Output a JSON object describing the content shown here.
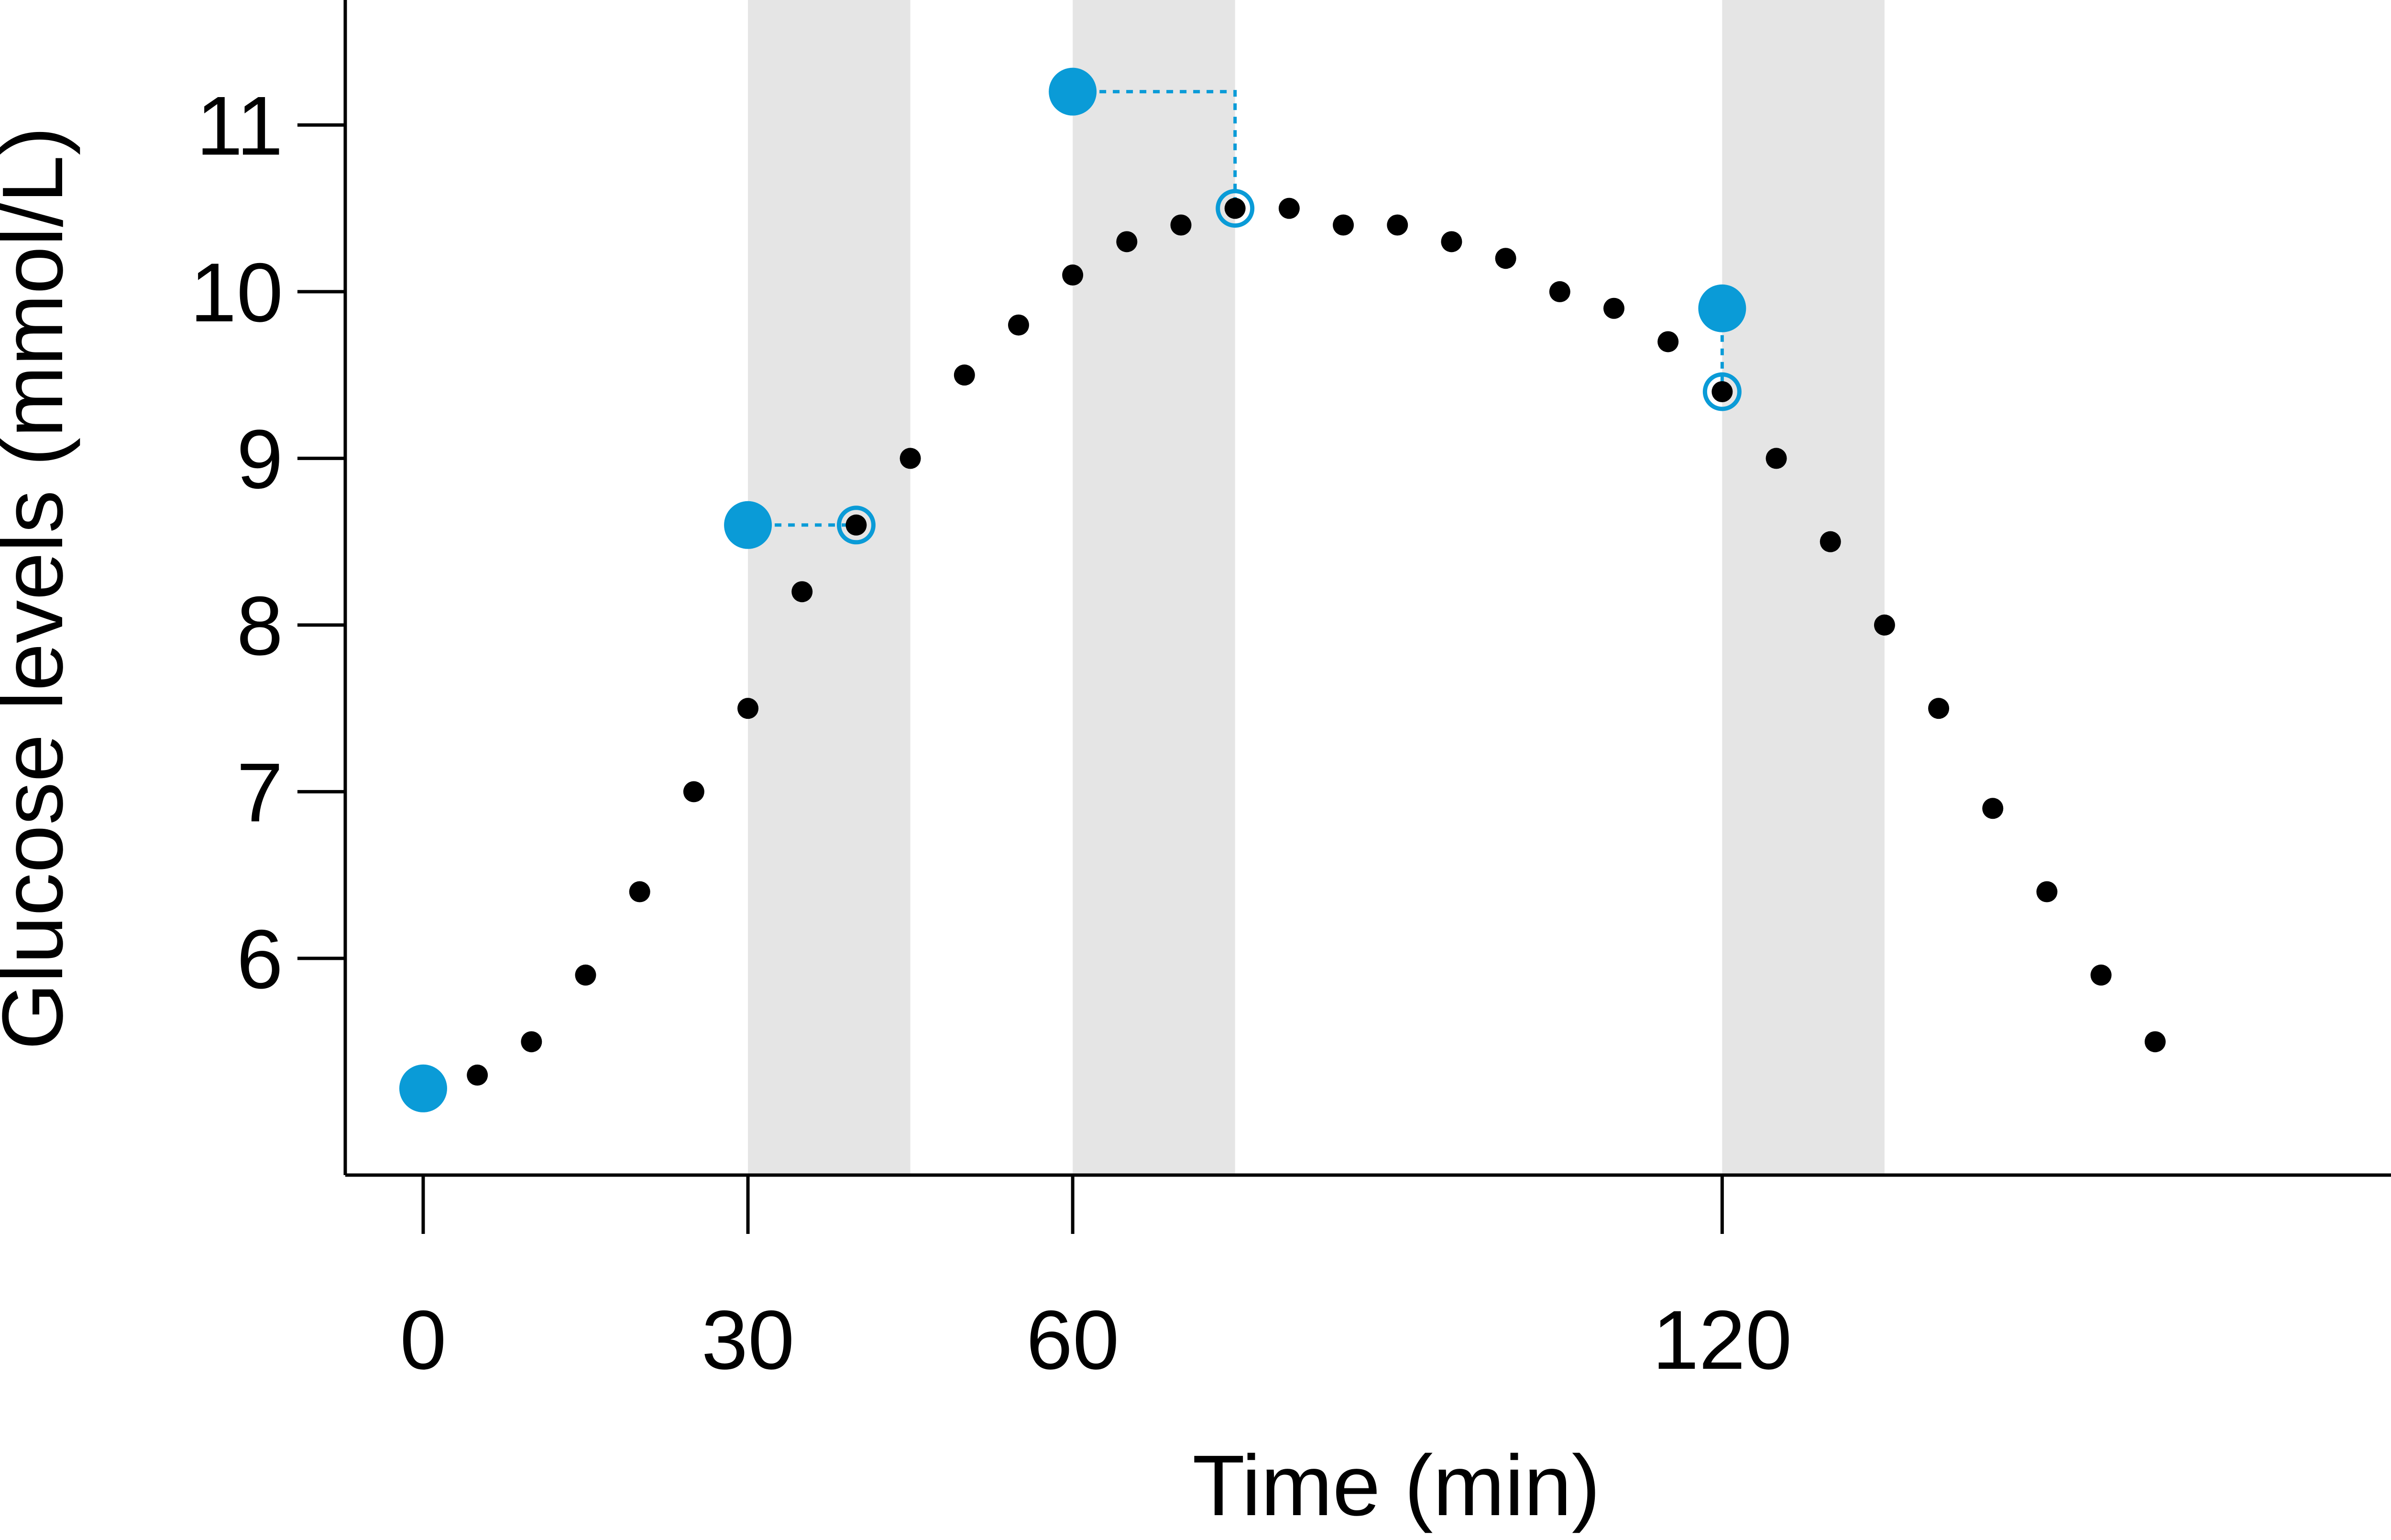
{
  "chart_data": {
    "type": "scatter",
    "title": "",
    "xlabel": "Time (min)",
    "ylabel": "Glucose levels (mmol/L)",
    "xlim": [
      -7.2,
      187
    ],
    "ylim": [
      4.7,
      11.75
    ],
    "x_ticks": [
      0,
      30,
      60,
      120
    ],
    "x_tick_labels": [
      "0",
      "30",
      "60",
      "120"
    ],
    "y_ticks": [
      6,
      7,
      8,
      9,
      10,
      11
    ],
    "y_tick_labels": [
      "6",
      "7",
      "8",
      "9",
      "10",
      "11"
    ],
    "grid": false,
    "legend": "none",
    "shaded_intervals": [
      [
        30,
        45
      ],
      [
        60,
        75
      ],
      [
        120,
        135
      ]
    ],
    "series": [
      {
        "marker": "small-dot",
        "points": [
          [
            5,
            5.3
          ],
          [
            10,
            5.5
          ],
          [
            15,
            5.9
          ],
          [
            20,
            6.4
          ],
          [
            25,
            7.0
          ],
          [
            30,
            7.5
          ],
          [
            35,
            8.2
          ],
          [
            40,
            8.6
          ],
          [
            45,
            9.0
          ],
          [
            50,
            9.5
          ],
          [
            55,
            9.8
          ],
          [
            60,
            10.1
          ],
          [
            65,
            10.3
          ],
          [
            70,
            10.4
          ],
          [
            75,
            10.5
          ],
          [
            80,
            10.5
          ],
          [
            85,
            10.4
          ],
          [
            90,
            10.4
          ],
          [
            95,
            10.3
          ],
          [
            100,
            10.2
          ],
          [
            105,
            10.0
          ],
          [
            110,
            9.9
          ],
          [
            115,
            9.7
          ],
          [
            120,
            9.4
          ],
          [
            125,
            9.0
          ],
          [
            130,
            8.5
          ],
          [
            135,
            8.0
          ],
          [
            140,
            7.5
          ],
          [
            145,
            6.9
          ],
          [
            150,
            6.4
          ],
          [
            155,
            5.9
          ],
          [
            160,
            5.5
          ]
        ]
      },
      {
        "marker": "large-dot",
        "points": [
          [
            0,
            5.22
          ],
          [
            30,
            8.6
          ],
          [
            60,
            11.2
          ],
          [
            120,
            9.9
          ]
        ]
      },
      {
        "marker": "ring",
        "points": [
          [
            40,
            8.6
          ],
          [
            75,
            10.5
          ],
          [
            120,
            9.4
          ]
        ]
      }
    ],
    "connectors": [
      {
        "from": [
          30,
          8.6
        ],
        "to": [
          40,
          8.6
        ]
      },
      {
        "from": [
          60,
          11.2
        ],
        "to": [
          75,
          10.5
        ]
      },
      {
        "from": [
          120,
          9.9
        ],
        "to": [
          120,
          9.4
        ]
      }
    ],
    "colors": {
      "accent": "#0a9bd7",
      "shade": "#e5e5e5",
      "dot": "#000000",
      "axis": "#000000"
    }
  }
}
